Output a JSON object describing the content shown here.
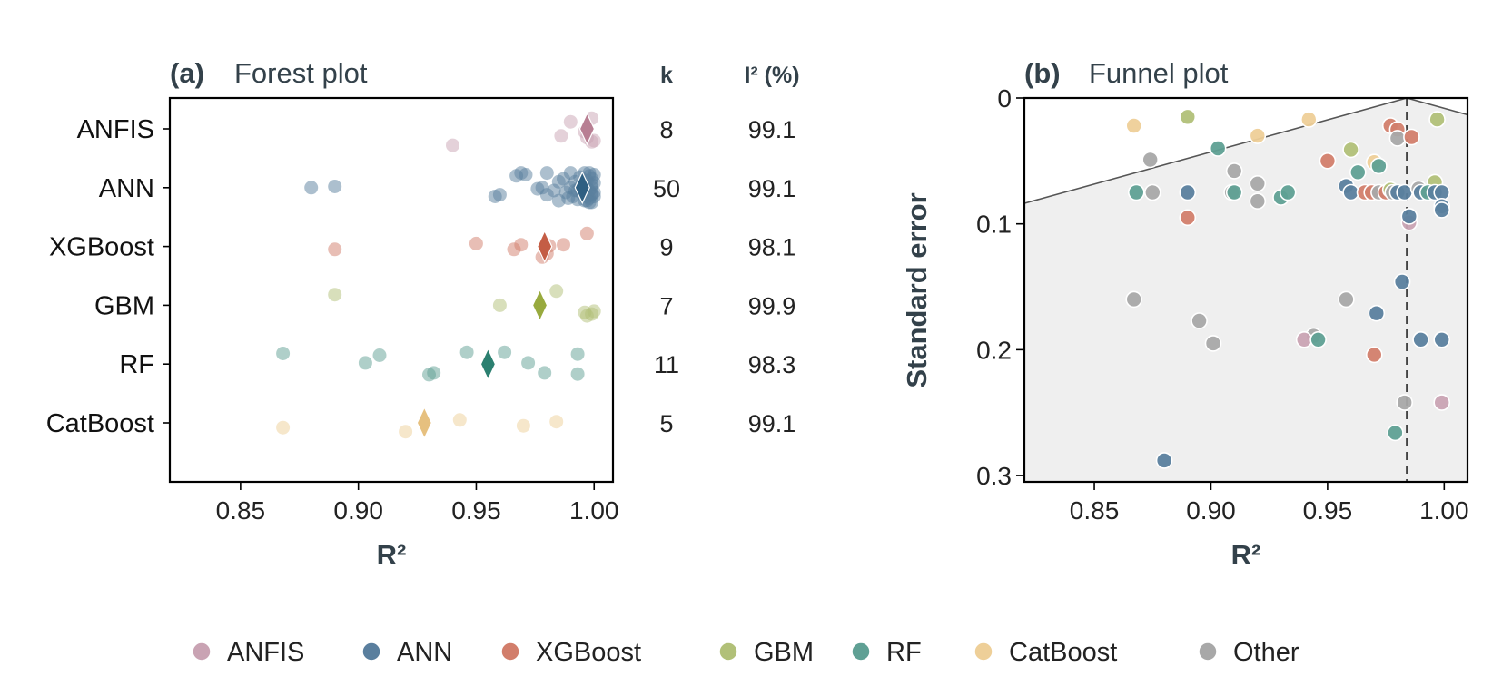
{
  "colors": {
    "ANFIS": "#c9a3b3",
    "ANN": "#5a7f9e",
    "XGBoost": "#d27e6b",
    "GBM": "#b1c078",
    "RF": "#5fa094",
    "CatBoost": "#eecf98",
    "Other": "#a8a8a8",
    "ANFIS_diamond": "#b87f93",
    "ANN_diamond": "#2f5f82",
    "XGBoost_diamond": "#c45d45",
    "GBM_diamond": "#98aa3e",
    "RF_diamond": "#2b8070",
    "CatBoost_diamond": "#e6c07f",
    "funnel_fill": "#efefef"
  },
  "chart_data": [
    {
      "type": "scatter",
      "panel_tag": "(a)",
      "title": "Forest plot",
      "xlabel": "R²",
      "xlim": [
        0.82,
        1.008
      ],
      "xticks": [
        "0.85",
        "0.90",
        "0.95",
        "1.00"
      ],
      "xtick_values": [
        0.85,
        0.9,
        0.95,
        1.0
      ],
      "categories": [
        "ANFIS",
        "ANN",
        "XGBoost",
        "GBM",
        "RF",
        "CatBoost"
      ],
      "column_headers": [
        "k",
        "I² (%)"
      ],
      "rows": [
        {
          "name": "ANFIS",
          "k": "8",
          "i2": "99.1",
          "pooled": 0.997,
          "points": [
            [
              0.94,
              0.28
            ],
            [
              0.99,
              -0.12
            ],
            [
              0.996,
              0.05
            ],
            [
              0.999,
              -0.18
            ],
            [
              0.986,
              0.12
            ],
            [
              0.997,
              0.15
            ],
            [
              1.0,
              0.2
            ],
            [
              0.999,
              0.22
            ]
          ]
        },
        {
          "name": "ANN",
          "k": "50",
          "i2": "99.1",
          "pooled": 0.995,
          "points": [
            [
              0.88,
              0.0
            ],
            [
              0.89,
              -0.02
            ],
            [
              0.958,
              0.15
            ],
            [
              0.96,
              0.12
            ],
            [
              0.967,
              -0.2
            ],
            [
              0.969,
              -0.25
            ],
            [
              0.971,
              -0.22
            ],
            [
              0.976,
              0.02
            ],
            [
              0.978,
              0.0
            ],
            [
              0.98,
              -0.25
            ],
            [
              0.98,
              0.12
            ],
            [
              0.983,
              0.05
            ],
            [
              0.985,
              -0.1
            ],
            [
              0.985,
              0.22
            ],
            [
              0.987,
              -0.15
            ],
            [
              0.988,
              0.08
            ],
            [
              0.99,
              -0.25
            ],
            [
              0.99,
              0.0
            ],
            [
              0.991,
              0.15
            ],
            [
              0.992,
              -0.1
            ],
            [
              0.993,
              0.2
            ],
            [
              0.993,
              0.05
            ],
            [
              0.994,
              -0.18
            ],
            [
              0.995,
              0.1
            ],
            [
              0.995,
              -0.05
            ],
            [
              0.996,
              0.22
            ],
            [
              0.996,
              -0.25
            ],
            [
              0.997,
              0.0
            ],
            [
              0.997,
              0.15
            ],
            [
              0.997,
              -0.12
            ],
            [
              0.998,
              0.05
            ],
            [
              0.998,
              -0.2
            ],
            [
              0.998,
              0.18
            ],
            [
              0.999,
              -0.05
            ],
            [
              0.999,
              0.1
            ],
            [
              0.999,
              -0.15
            ],
            [
              0.999,
              0.25
            ],
            [
              0.999,
              0.0
            ],
            [
              1.0,
              -0.22
            ],
            [
              1.0,
              0.08
            ],
            [
              1.0,
              -0.08
            ],
            [
              1.0,
              0.15
            ],
            [
              0.994,
              0.0
            ],
            [
              0.992,
              0.05
            ],
            [
              0.996,
              -0.02
            ],
            [
              0.999,
              0.12
            ],
            [
              0.989,
              0.18
            ],
            [
              0.997,
              0.22
            ],
            [
              0.998,
              -0.25
            ],
            [
              0.998,
              0.25
            ]
          ]
        },
        {
          "name": "XGBoost",
          "k": "9",
          "i2": "98.1",
          "pooled": 0.979,
          "points": [
            [
              0.89,
              0.05
            ],
            [
              0.95,
              -0.05
            ],
            [
              0.966,
              0.05
            ],
            [
              0.969,
              -0.03
            ],
            [
              0.978,
              0.18
            ],
            [
              0.98,
              0.12
            ],
            [
              0.987,
              -0.03
            ],
            [
              0.997,
              -0.22
            ],
            [
              0.981,
              -0.01
            ]
          ]
        },
        {
          "name": "GBM",
          "k": "7",
          "i2": "99.9",
          "pooled": 0.977,
          "points": [
            [
              0.89,
              -0.18
            ],
            [
              0.96,
              0.0
            ],
            [
              0.984,
              -0.24
            ],
            [
              0.996,
              0.12
            ],
            [
              0.997,
              0.18
            ],
            [
              0.999,
              0.15
            ],
            [
              1.0,
              0.1
            ]
          ]
        },
        {
          "name": "RF",
          "k": "11",
          "i2": "98.3",
          "pooled": 0.955,
          "points": [
            [
              0.868,
              -0.18
            ],
            [
              0.903,
              -0.02
            ],
            [
              0.909,
              -0.15
            ],
            [
              0.93,
              0.18
            ],
            [
              0.932,
              0.15
            ],
            [
              0.946,
              -0.2
            ],
            [
              0.962,
              -0.2
            ],
            [
              0.972,
              -0.02
            ],
            [
              0.979,
              0.15
            ],
            [
              0.993,
              0.17
            ],
            [
              0.993,
              -0.17
            ]
          ]
        },
        {
          "name": "CatBoost",
          "k": "5",
          "i2": "99.1",
          "pooled": 0.928,
          "points": [
            [
              0.868,
              0.08
            ],
            [
              0.92,
              0.15
            ],
            [
              0.943,
              -0.05
            ],
            [
              0.97,
              0.05
            ],
            [
              0.984,
              -0.02
            ]
          ]
        }
      ]
    },
    {
      "type": "scatter",
      "panel_tag": "(b)",
      "title": "Funnel plot",
      "xlabel": "R²",
      "ylabel": "Standard error",
      "xlim": [
        0.82,
        1.01
      ],
      "ylim": [
        0.0,
        0.305
      ],
      "y_inverted": true,
      "xticks": [
        "0.85",
        "0.90",
        "0.95",
        "1.00"
      ],
      "xtick_values": [
        0.85,
        0.9,
        0.95,
        1.0
      ],
      "yticks": [
        "0",
        "0.1",
        "0.2",
        "0.3"
      ],
      "ytick_values": [
        0.0,
        0.1,
        0.2,
        0.3
      ],
      "pooled_estimate": 0.984,
      "funnel_slope": 1.96,
      "points": [
        {
          "g": "CatBoost",
          "x": 0.867,
          "y": 0.022
        },
        {
          "g": "GBM",
          "x": 0.89,
          "y": 0.015
        },
        {
          "g": "CatBoost",
          "x": 0.942,
          "y": 0.017
        },
        {
          "g": "GBM",
          "x": 0.997,
          "y": 0.017
        },
        {
          "g": "RF",
          "x": 0.903,
          "y": 0.04
        },
        {
          "g": "CatBoost",
          "x": 0.92,
          "y": 0.03
        },
        {
          "g": "XGBoost",
          "x": 0.977,
          "y": 0.022
        },
        {
          "g": "XGBoost",
          "x": 0.98,
          "y": 0.025
        },
        {
          "g": "Other",
          "x": 0.98,
          "y": 0.032
        },
        {
          "g": "XGBoost",
          "x": 0.986,
          "y": 0.031
        },
        {
          "g": "Other",
          "x": 0.874,
          "y": 0.049
        },
        {
          "g": "XGBoost",
          "x": 0.95,
          "y": 0.05
        },
        {
          "g": "GBM",
          "x": 0.96,
          "y": 0.041
        },
        {
          "g": "RF",
          "x": 0.963,
          "y": 0.059
        },
        {
          "g": "CatBoost",
          "x": 0.97,
          "y": 0.051
        },
        {
          "g": "RF",
          "x": 0.972,
          "y": 0.054
        },
        {
          "g": "Other",
          "x": 0.91,
          "y": 0.058
        },
        {
          "g": "Other",
          "x": 0.92,
          "y": 0.068
        },
        {
          "g": "GBM",
          "x": 0.996,
          "y": 0.067
        },
        {
          "g": "RF",
          "x": 0.868,
          "y": 0.075
        },
        {
          "g": "Other",
          "x": 0.875,
          "y": 0.075
        },
        {
          "g": "ANN",
          "x": 0.89,
          "y": 0.075
        },
        {
          "g": "Other",
          "x": 0.909,
          "y": 0.075
        },
        {
          "g": "RF",
          "x": 0.91,
          "y": 0.075
        },
        {
          "g": "RF",
          "x": 0.93,
          "y": 0.079
        },
        {
          "g": "RF",
          "x": 0.933,
          "y": 0.075
        },
        {
          "g": "Other",
          "x": 0.92,
          "y": 0.082
        },
        {
          "g": "ANN",
          "x": 0.958,
          "y": 0.07
        },
        {
          "g": "ANN",
          "x": 0.96,
          "y": 0.075
        },
        {
          "g": "XGBoost",
          "x": 0.966,
          "y": 0.075
        },
        {
          "g": "XGBoost",
          "x": 0.969,
          "y": 0.075
        },
        {
          "g": "Other",
          "x": 0.972,
          "y": 0.075
        },
        {
          "g": "XGBoost",
          "x": 0.975,
          "y": 0.075
        },
        {
          "g": "GBM",
          "x": 0.977,
          "y": 0.073
        },
        {
          "g": "Other",
          "x": 0.978,
          "y": 0.075
        },
        {
          "g": "ANN",
          "x": 0.98,
          "y": 0.075
        },
        {
          "g": "ANN",
          "x": 0.983,
          "y": 0.075
        },
        {
          "g": "Other",
          "x": 0.989,
          "y": 0.072
        },
        {
          "g": "ANN",
          "x": 0.99,
          "y": 0.075
        },
        {
          "g": "RF",
          "x": 0.993,
          "y": 0.075
        },
        {
          "g": "ANN",
          "x": 0.996,
          "y": 0.075
        },
        {
          "g": "ANN",
          "x": 0.999,
          "y": 0.075
        },
        {
          "g": "ANN",
          "x": 0.999,
          "y": 0.086
        },
        {
          "g": "ANN",
          "x": 0.999,
          "y": 0.089
        },
        {
          "g": "XGBoost",
          "x": 0.89,
          "y": 0.095
        },
        {
          "g": "ANFIS",
          "x": 0.985,
          "y": 0.099
        },
        {
          "g": "ANN",
          "x": 0.985,
          "y": 0.094
        },
        {
          "g": "ANN",
          "x": 0.982,
          "y": 0.146
        },
        {
          "g": "Other",
          "x": 0.867,
          "y": 0.16
        },
        {
          "g": "Other",
          "x": 0.958,
          "y": 0.16
        },
        {
          "g": "ANN",
          "x": 0.971,
          "y": 0.171
        },
        {
          "g": "Other",
          "x": 0.895,
          "y": 0.177
        },
        {
          "g": "Other",
          "x": 0.944,
          "y": 0.189
        },
        {
          "g": "ANFIS",
          "x": 0.94,
          "y": 0.192
        },
        {
          "g": "RF",
          "x": 0.946,
          "y": 0.192
        },
        {
          "g": "Other",
          "x": 0.901,
          "y": 0.195
        },
        {
          "g": "ANN",
          "x": 0.99,
          "y": 0.192
        },
        {
          "g": "ANN",
          "x": 0.999,
          "y": 0.192
        },
        {
          "g": "XGBoost",
          "x": 0.97,
          "y": 0.204
        },
        {
          "g": "Other",
          "x": 0.983,
          "y": 0.242
        },
        {
          "g": "ANFIS",
          "x": 0.999,
          "y": 0.242
        },
        {
          "g": "RF",
          "x": 0.979,
          "y": 0.266
        },
        {
          "g": "ANN",
          "x": 0.88,
          "y": 0.288
        }
      ]
    }
  ],
  "legend": {
    "placement": "bottom",
    "items": [
      "ANFIS",
      "ANN",
      "XGBoost",
      "GBM",
      "RF",
      "CatBoost",
      "Other"
    ]
  }
}
